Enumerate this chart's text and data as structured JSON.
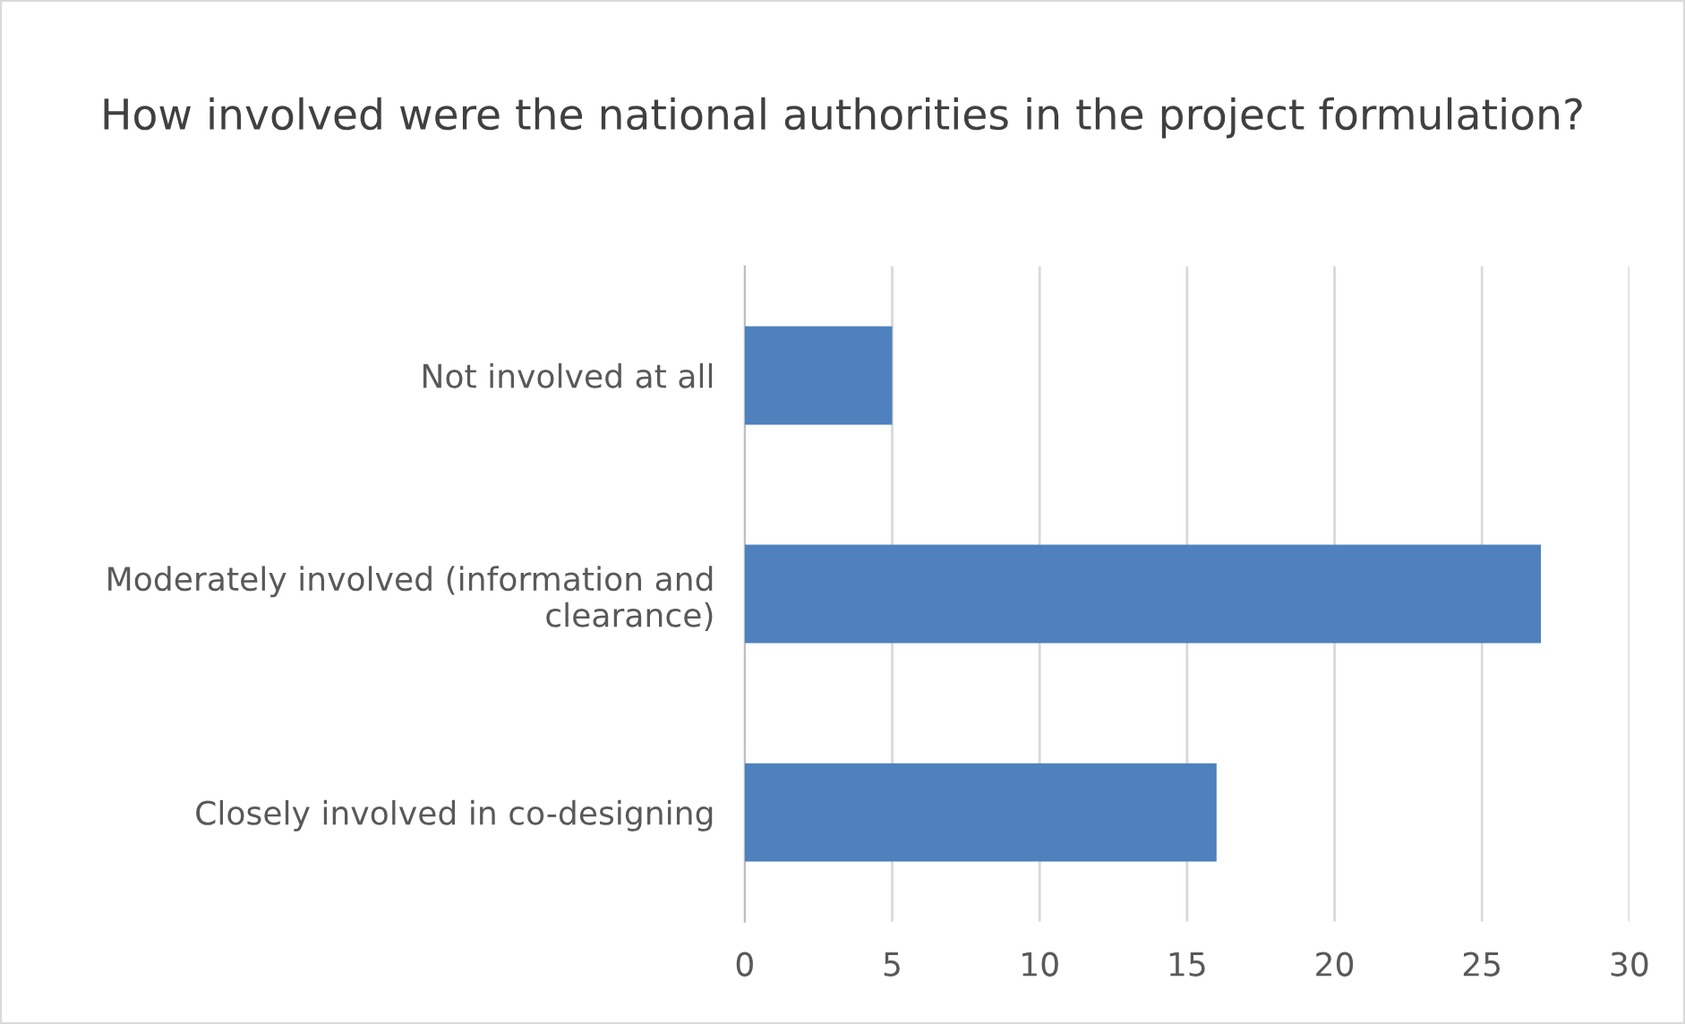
{
  "chart_data": {
    "type": "bar",
    "orientation": "horizontal",
    "title": "How involved were the national authorities in the project formulation?",
    "categories": [
      "Not involved at all",
      "Moderately involved (information and clearance)",
      "Closely involved in co-designing"
    ],
    "values": [
      5,
      27,
      16
    ],
    "color": "#4e81bd",
    "xlim": [
      0,
      30
    ],
    "xticks": [
      0,
      5,
      10,
      15,
      20,
      25,
      30
    ],
    "grid": "x",
    "legend": false
  }
}
